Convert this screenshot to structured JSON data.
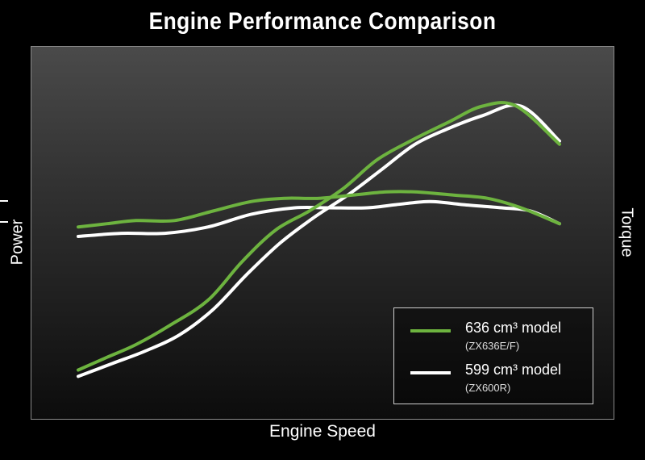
{
  "colors": {
    "green": "#6db33f",
    "white": "#ffffff"
  },
  "chart_data": {
    "type": "line",
    "title": "Engine Performance Comparison",
    "xlabel": "Engine Speed",
    "ylabel": "Power",
    "y2label": "Torque",
    "xlim": [
      0,
      100
    ],
    "ylim": [
      0,
      100
    ],
    "grid": false,
    "legend_position": "bottom-right",
    "series": [
      {
        "name": "636 cm³ model",
        "detail": "(ZX636E/F)",
        "measure": "Power",
        "color": "#6db33f",
        "x": [
          0,
          6,
          12,
          19,
          27,
          34,
          41,
          48,
          55,
          62,
          69,
          77,
          84,
          91,
          100
        ],
        "y": [
          8,
          12,
          16,
          22,
          30,
          42,
          52,
          58,
          65,
          74,
          80,
          86,
          91,
          91,
          79
        ]
      },
      {
        "name": "636 cm³ model",
        "detail": "(ZX636E/F)",
        "measure": "Torque",
        "color": "#6db33f",
        "x": [
          0,
          6,
          12,
          20,
          28,
          36,
          43,
          50,
          57,
          64,
          70,
          78,
          85,
          92,
          100
        ],
        "y": [
          53,
          54,
          55,
          55,
          58,
          61,
          62,
          62,
          63,
          64,
          64,
          63,
          62,
          59,
          54
        ]
      },
      {
        "name": "599 cm³ model",
        "detail": "(ZX600R)",
        "measure": "Power",
        "color": "#ffffff",
        "x": [
          0,
          7,
          14,
          21,
          28,
          35,
          42,
          49,
          56,
          63,
          70,
          77,
          84,
          92,
          100
        ],
        "y": [
          6,
          10,
          14,
          19,
          27,
          38,
          48,
          56,
          63,
          71,
          79,
          84,
          88,
          91,
          80
        ]
      },
      {
        "name": "599 cm³ model",
        "detail": "(ZX600R)",
        "measure": "Torque",
        "color": "#ffffff",
        "x": [
          0,
          9,
          18,
          27,
          36,
          45,
          52,
          60,
          66,
          73,
          80,
          88,
          94,
          100
        ],
        "y": [
          50,
          51,
          51,
          53,
          57,
          59,
          59,
          59,
          60,
          61,
          60,
          59,
          58,
          54
        ]
      }
    ],
    "legend": [
      {
        "label": "636 cm³ model",
        "sub": "(ZX636E/F)",
        "color": "#6db33f"
      },
      {
        "label": "599 cm³ model",
        "sub": "(ZX600R)",
        "color": "#ffffff"
      }
    ]
  }
}
